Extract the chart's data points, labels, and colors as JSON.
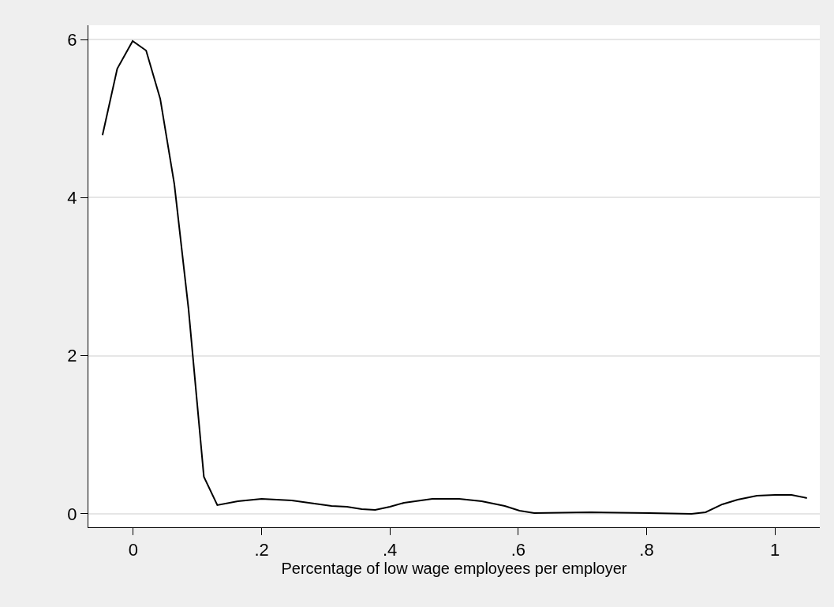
{
  "chart_data": {
    "type": "line",
    "xlabel": "Percentage of low wage employees per employer",
    "x": [
      -0.048,
      -0.025,
      -0.001,
      0.02,
      0.042,
      0.064,
      0.086,
      0.11,
      0.131,
      0.163,
      0.2,
      0.247,
      0.309,
      0.333,
      0.356,
      0.377,
      0.4,
      0.422,
      0.466,
      0.508,
      0.543,
      0.579,
      0.602,
      0.625,
      0.713,
      0.805,
      0.87,
      0.892,
      0.918,
      0.942,
      0.972,
      1.0,
      1.026,
      1.05
    ],
    "series": [
      {
        "color": "#000000",
        "values": [
          4.79,
          5.63,
          5.98,
          5.86,
          5.25,
          4.17,
          2.6,
          0.47,
          0.11,
          0.16,
          0.19,
          0.17,
          0.1,
          0.09,
          0.06,
          0.05,
          0.09,
          0.14,
          0.19,
          0.19,
          0.16,
          0.1,
          0.04,
          0.01,
          0.02,
          0.01,
          0.0,
          0.02,
          0.12,
          0.18,
          0.23,
          0.24,
          0.24,
          0.2
        ]
      }
    ],
    "xlim": [
      -0.07,
      1.07
    ],
    "ylim": [
      -0.17,
      6.18
    ],
    "xticks": [
      0,
      {
        "value": 0.2,
        "label": ".2"
      },
      {
        "value": 0.4,
        "label": ".4"
      },
      {
        "value": 0.6,
        "label": ".6"
      },
      {
        "value": 0.8,
        "label": ".8"
      },
      1
    ],
    "yticks": [
      0,
      2,
      4,
      6
    ],
    "grid": "y",
    "marker": "none",
    "line_style": "solid"
  }
}
